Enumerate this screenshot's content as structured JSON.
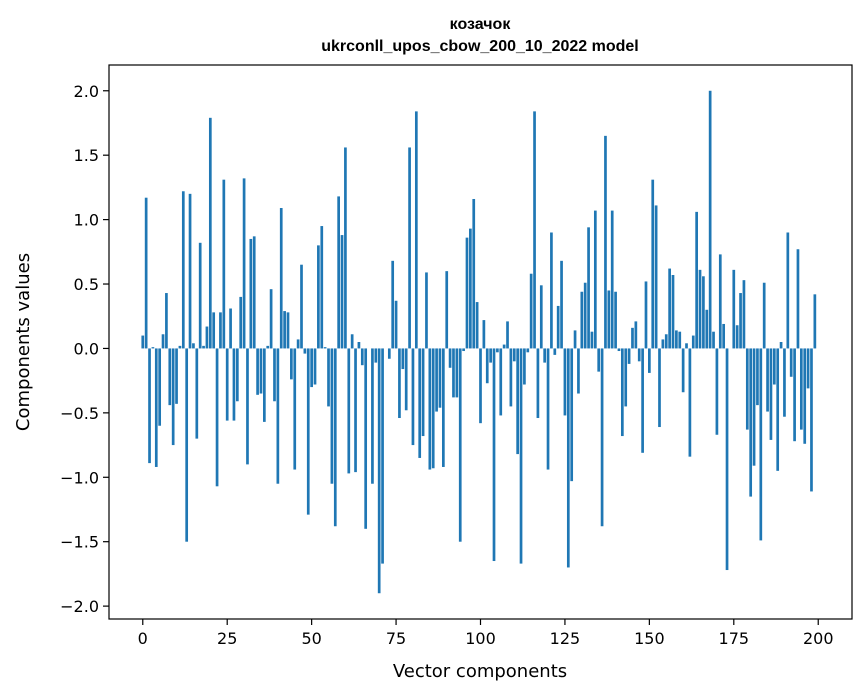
{
  "chart_data": {
    "type": "bar",
    "title": "козачок",
    "subtitle": "ukrconll_upos_cbow_200_10_2022 model",
    "xlabel": "Vector components",
    "ylabel": "Components values",
    "xlim": [
      -10,
      210
    ],
    "ylim": [
      -2.1,
      2.2
    ],
    "xticks": [
      0,
      25,
      50,
      75,
      100,
      125,
      150,
      175,
      200
    ],
    "xtick_labels": [
      "0",
      "25",
      "50",
      "75",
      "100",
      "125",
      "150",
      "175",
      "200"
    ],
    "yticks": [
      2.0,
      1.5,
      1.0,
      0.5,
      0.0,
      -0.5,
      -1.0,
      -1.5,
      -2.0
    ],
    "ytick_labels": [
      "2.0",
      "1.5",
      "1.0",
      "0.5",
      "0.0",
      "−0.5",
      "−1.0",
      "−1.5",
      "−2.0"
    ],
    "grid": false,
    "bar_color": "#1f77b4",
    "x": [
      0,
      1,
      2,
      3,
      4,
      5,
      6,
      7,
      8,
      9,
      10,
      11,
      12,
      13,
      14,
      15,
      16,
      17,
      18,
      19,
      20,
      21,
      22,
      23,
      24,
      25,
      26,
      27,
      28,
      29,
      30,
      31,
      32,
      33,
      34,
      35,
      36,
      37,
      38,
      39,
      40,
      41,
      42,
      43,
      44,
      45,
      46,
      47,
      48,
      49,
      50,
      51,
      52,
      53,
      54,
      55,
      56,
      57,
      58,
      59,
      60,
      61,
      62,
      63,
      64,
      65,
      66,
      67,
      68,
      69,
      70,
      71,
      72,
      73,
      74,
      75,
      76,
      77,
      78,
      79,
      80,
      81,
      82,
      83,
      84,
      85,
      86,
      87,
      88,
      89,
      90,
      91,
      92,
      93,
      94,
      95,
      96,
      97,
      98,
      99,
      100,
      101,
      102,
      103,
      104,
      105,
      106,
      107,
      108,
      109,
      110,
      111,
      112,
      113,
      114,
      115,
      116,
      117,
      118,
      119,
      120,
      121,
      122,
      123,
      124,
      125,
      126,
      127,
      128,
      129,
      130,
      131,
      132,
      133,
      134,
      135,
      136,
      137,
      138,
      139,
      140,
      141,
      142,
      143,
      144,
      145,
      146,
      147,
      148,
      149,
      150,
      151,
      152,
      153,
      154,
      155,
      156,
      157,
      158,
      159,
      160,
      161,
      162,
      163,
      164,
      165,
      166,
      167,
      168,
      169,
      170,
      171,
      172,
      173,
      174,
      175,
      176,
      177,
      178,
      179,
      180,
      181,
      182,
      183,
      184,
      185,
      186,
      187,
      188,
      189,
      190,
      191,
      192,
      193,
      194,
      195,
      196,
      197,
      198,
      199
    ],
    "values": [
      0.1,
      1.17,
      -0.89,
      0.01,
      -0.92,
      -0.6,
      0.11,
      0.43,
      -0.44,
      -0.75,
      -0.43,
      0.02,
      1.22,
      -1.5,
      1.2,
      0.04,
      -0.7,
      0.82,
      0.02,
      0.17,
      1.79,
      0.28,
      -1.07,
      0.28,
      1.31,
      -0.56,
      0.31,
      -0.56,
      -0.41,
      0.4,
      1.32,
      -0.9,
      0.85,
      0.87,
      -0.36,
      -0.35,
      -0.57,
      0.02,
      0.46,
      -0.41,
      -1.05,
      1.09,
      0.29,
      0.28,
      -0.24,
      -0.94,
      0.07,
      0.65,
      -0.04,
      -1.29,
      -0.3,
      -0.28,
      0.8,
      0.95,
      0.01,
      -0.45,
      -1.05,
      -1.38,
      1.18,
      0.88,
      1.56,
      -0.97,
      0.11,
      -0.96,
      0.05,
      -0.13,
      -1.4,
      0.0,
      -1.05,
      -0.11,
      -1.9,
      -1.67,
      0.0,
      -0.08,
      0.68,
      0.37,
      -0.54,
      -0.16,
      -0.48,
      1.56,
      -0.75,
      1.84,
      -0.85,
      -0.68,
      0.59,
      -0.94,
      -0.93,
      -0.49,
      -0.46,
      -0.92,
      0.6,
      -0.15,
      -0.38,
      -0.38,
      -1.5,
      -0.02,
      0.86,
      0.93,
      1.16,
      0.36,
      -0.58,
      0.22,
      -0.27,
      -0.11,
      -1.65,
      -0.03,
      -0.52,
      0.03,
      0.21,
      -0.45,
      -0.1,
      -0.82,
      -1.67,
      -0.28,
      -0.03,
      0.58,
      1.84,
      -0.54,
      0.49,
      -0.11,
      -0.94,
      0.9,
      -0.05,
      0.33,
      0.68,
      -0.52,
      -1.7,
      -1.03,
      0.14,
      -0.35,
      0.44,
      0.51,
      0.94,
      0.13,
      1.07,
      -0.18,
      -1.38,
      1.65,
      0.45,
      1.07,
      0.44,
      -0.02,
      -0.68,
      -0.45,
      -0.12,
      0.16,
      0.21,
      -0.1,
      -0.81,
      0.52,
      -0.19,
      1.31,
      1.11,
      -0.61,
      0.07,
      0.11,
      0.62,
      0.57,
      0.14,
      0.13,
      -0.34,
      0.04,
      -0.84,
      0.1,
      1.06,
      0.61,
      0.56,
      0.3,
      2.0,
      0.13,
      -0.67,
      0.73,
      0.19,
      -1.72,
      0.0,
      0.61,
      0.18,
      0.43,
      0.53,
      -0.63,
      -1.15,
      -0.91,
      -0.44,
      -1.49,
      0.51,
      -0.49,
      -0.71,
      -0.28,
      -0.95,
      0.05,
      -0.53,
      0.9,
      -0.22,
      -0.72,
      0.77,
      -0.63,
      -0.74,
      -0.31,
      -1.11,
      0.42
    ]
  }
}
